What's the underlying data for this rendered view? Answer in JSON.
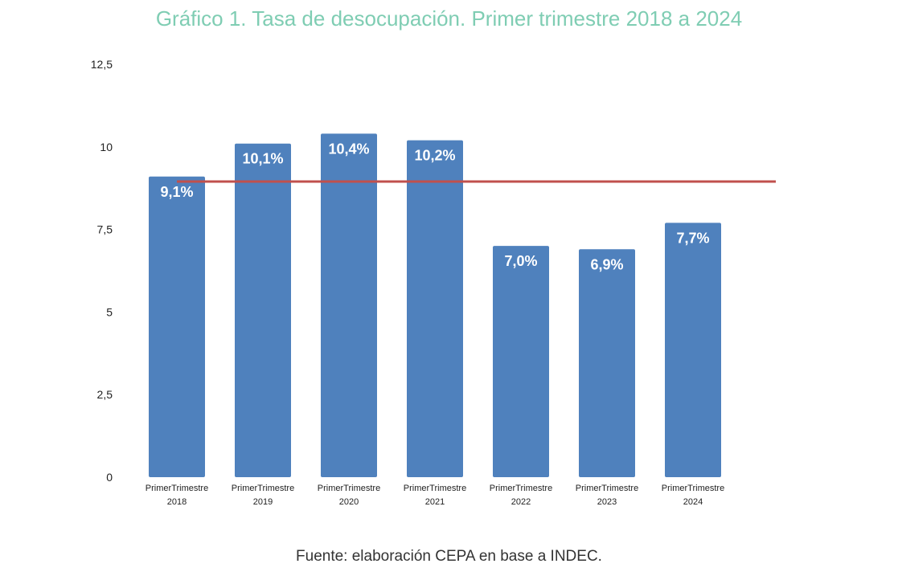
{
  "chart_data": {
    "type": "bar",
    "title": "Gráfico 1. Tasa de desocupación. Primer trimestre 2018 a 2024",
    "source": "Fuente: elaboración CEPA en base a INDEC.",
    "categories": [
      [
        "PrimerTrimestre",
        "2018"
      ],
      [
        "PrimerTrimestre",
        "2019"
      ],
      [
        "PrimerTrimestre",
        "2020"
      ],
      [
        "PrimerTrimestre",
        "2021"
      ],
      [
        "PrimerTrimestre",
        "2022"
      ],
      [
        "PrimerTrimestre",
        "2023"
      ],
      [
        "PrimerTrimestre",
        "2024"
      ]
    ],
    "values": [
      9.1,
      10.1,
      10.4,
      10.2,
      7.0,
      6.9,
      7.7
    ],
    "data_labels": [
      "9,1%",
      "10,1%",
      "10,4%",
      "10,2%",
      "7,0%",
      "6,9%",
      "7,7%"
    ],
    "reference_line": {
      "value": 8.95,
      "color": "#c0504d"
    },
    "ylim": [
      0,
      12.5
    ],
    "yticks": [
      {
        "value": 0,
        "label": "0"
      },
      {
        "value": 2.5,
        "label": "2,5"
      },
      {
        "value": 5,
        "label": "5"
      },
      {
        "value": 7.5,
        "label": "7,5"
      },
      {
        "value": 10,
        "label": "10"
      },
      {
        "value": 12.5,
        "label": "12,5"
      }
    ],
    "grid": false,
    "legend": "none",
    "bar_color": "#4f81bd",
    "title_color": "#7fcdb3"
  }
}
